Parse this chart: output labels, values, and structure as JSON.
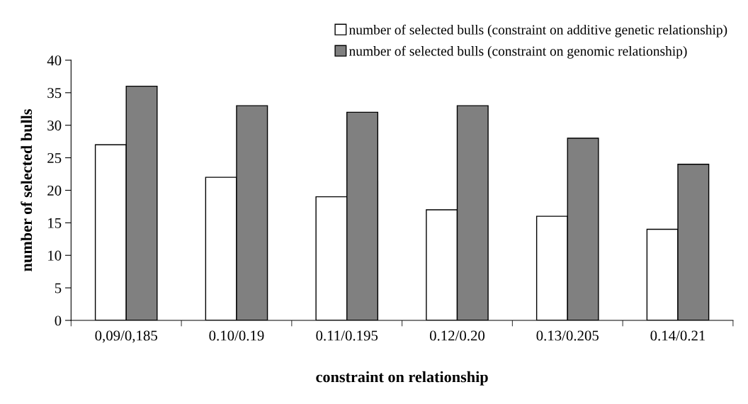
{
  "chart_data": {
    "type": "bar",
    "xlabel": "constraint on relationship",
    "ylabel": "number of selected bulls",
    "categories": [
      "0,09/0,185",
      "0.10/0.19",
      "0.11/0.195",
      "0.12/0.20",
      "0.13/0.205",
      "0.14/0.21"
    ],
    "series": [
      {
        "name": "number of selected bulls (constraint on additive genetic relationship)",
        "color": "#ffffff",
        "values": [
          27,
          22,
          19,
          17,
          16,
          14
        ]
      },
      {
        "name": "number of selected bulls (constraint on genomic relationship)",
        "color": "#808080",
        "values": [
          36,
          33,
          32,
          33,
          28,
          24
        ]
      }
    ],
    "ylim": [
      0,
      40
    ],
    "yticks": [
      0,
      5,
      10,
      15,
      20,
      25,
      30,
      35,
      40
    ],
    "grid": false,
    "legend": "top right"
  }
}
